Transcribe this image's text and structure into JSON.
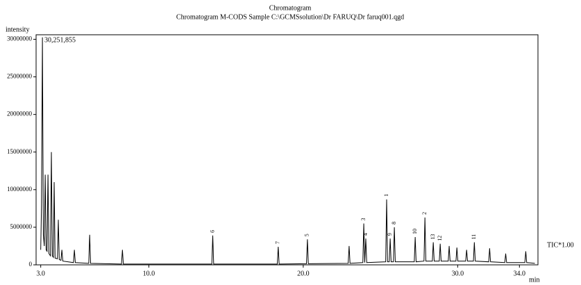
{
  "chart_data": {
    "type": "line",
    "title": "Chromatogram",
    "subtitle": "Chromatogram M-CODS Sample C:\\GCMSsolution\\Dr FARUQ\\Dr faruq001.qgd",
    "y_label": "intensity",
    "x_label": "min",
    "max_annotation": "30,251,855",
    "trace_annotation": "TIC*1.00",
    "color": "#000000",
    "xlim": [
      2.7,
      35.2
    ],
    "ylim": [
      0,
      30600000
    ],
    "xticks": [
      {
        "value": 3,
        "label": "3.0"
      },
      {
        "value": 10,
        "label": "10.0"
      },
      {
        "value": 20,
        "label": "20.0"
      },
      {
        "value": 30,
        "label": "30.0"
      },
      {
        "value": 34,
        "label": "34.0"
      }
    ],
    "yticks": [
      0,
      5000000,
      10000000,
      15000000,
      20000000,
      25000000,
      30000000
    ],
    "x": [
      3.0,
      3.05,
      3.11,
      3.17,
      3.23,
      3.29,
      3.35,
      3.41,
      3.47,
      3.53,
      3.63,
      3.69,
      3.75,
      3.82,
      3.87,
      3.93,
      4.08,
      4.14,
      4.2,
      4.31,
      4.37,
      4.43,
      5.12,
      5.18,
      5.24,
      6.11,
      6.17,
      6.23,
      8.23,
      8.29,
      8.35,
      14.08,
      14.14,
      14.2,
      18.32,
      18.38,
      18.44,
      20.21,
      20.27,
      20.33,
      22.91,
      22.97,
      23.03,
      23.86,
      23.92,
      23.98,
      24.05,
      24.11,
      25.34,
      25.4,
      25.46,
      25.57,
      25.63,
      25.69,
      25.84,
      25.9,
      25.96,
      27.19,
      27.25,
      27.31,
      27.82,
      27.88,
      27.94,
      28.36,
      28.42,
      28.48,
      28.81,
      28.87,
      28.93,
      29.39,
      29.45,
      29.51,
      29.89,
      29.95,
      30.01,
      30.52,
      30.58,
      30.64,
      31.02,
      31.08,
      31.14,
      32.01,
      32.07,
      32.13,
      33.05,
      33.11,
      33.17,
      34.35,
      34.41,
      34.47,
      35.0
    ],
    "values": [
      2000000,
      8000000,
      30251855,
      4000000,
      2500000,
      12000000,
      2000000,
      1800000,
      12000000,
      1500000,
      1200000,
      15000000,
      1200000,
      1000000,
      11000000,
      900000,
      800000,
      6000000,
      700000,
      600000,
      2000000,
      500000,
      300000,
      2000000,
      300000,
      200000,
      4000000,
      200000,
      100000,
      2000000,
      100000,
      100000,
      3900000,
      100000,
      100000,
      2400000,
      100000,
      150000,
      3400000,
      150000,
      200000,
      2500000,
      200000,
      300000,
      5500000,
      300000,
      3500000,
      300000,
      400000,
      8700000,
      400000,
      400000,
      3500000,
      400000,
      400000,
      5000000,
      400000,
      400000,
      3700000,
      400000,
      500000,
      6300000,
      500000,
      500000,
      3000000,
      500000,
      500000,
      2800000,
      500000,
      500000,
      2500000,
      500000,
      500000,
      2300000,
      500000,
      500000,
      2000000,
      500000,
      500000,
      3000000,
      500000,
      400000,
      2200000,
      400000,
      300000,
      1500000,
      300000,
      300000,
      1800000,
      300000,
      200000
    ],
    "peaks": {
      "labels": [
        "6",
        "7",
        "5",
        "3",
        "4",
        "1",
        "9",
        "8",
        "10",
        "2",
        "13",
        "12",
        "11"
      ],
      "x": [
        14.14,
        18.38,
        20.27,
        23.92,
        24.05,
        25.4,
        25.63,
        25.9,
        27.25,
        27.88,
        28.42,
        28.87,
        31.08
      ],
      "values": [
        3900000,
        2400000,
        3400000,
        5500000,
        3500000,
        8700000,
        3500000,
        5000000,
        3700000,
        6300000,
        3000000,
        2800000,
        3000000
      ]
    }
  }
}
